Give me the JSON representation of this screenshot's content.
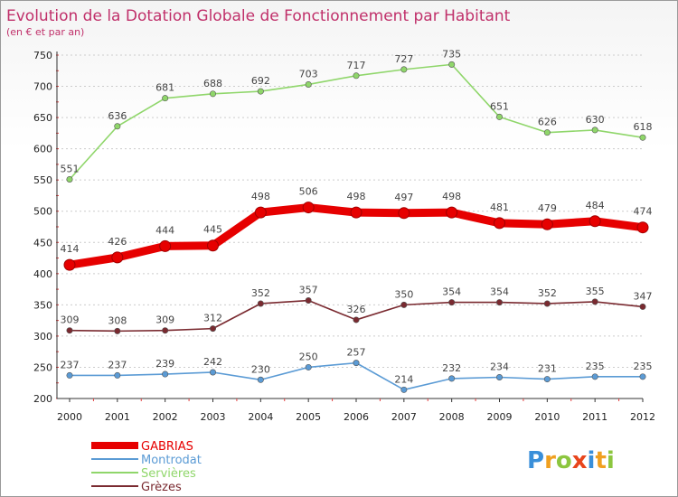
{
  "chart_data": {
    "type": "line",
    "title": "Evolution de la Dotation Globale de Fonctionnement par Habitant",
    "subtitle": "(en € et par an)",
    "xlabel": "",
    "ylabel": "",
    "x": [
      "2000",
      "2001",
      "2002",
      "2003",
      "2004",
      "2005",
      "2006",
      "2007",
      "2008",
      "2009",
      "2010",
      "2011",
      "2012"
    ],
    "yticks": [
      200,
      250,
      300,
      350,
      400,
      450,
      500,
      550,
      600,
      650,
      700,
      750
    ],
    "ylim": [
      200,
      750
    ],
    "grid": "horizontal dashed",
    "legend_position": "bottom-left",
    "series": [
      {
        "name": "GABRIAS",
        "color": "#e60000",
        "values": [
          414,
          426,
          444,
          445,
          498,
          506,
          498,
          497,
          498,
          481,
          479,
          484,
          474
        ]
      },
      {
        "name": "Montrodat",
        "color": "#5b9bd5",
        "values": [
          237,
          237,
          239,
          242,
          230,
          250,
          257,
          214,
          232,
          234,
          231,
          235,
          235
        ]
      },
      {
        "name": "Servières",
        "color": "#8fd66a",
        "values": [
          551,
          636,
          681,
          688,
          692,
          703,
          717,
          727,
          735,
          651,
          626,
          630,
          618
        ]
      },
      {
        "name": "Grèzes",
        "color": "#7a2a30",
        "values": [
          309,
          308,
          309,
          312,
          352,
          357,
          326,
          350,
          354,
          354,
          352,
          355,
          347
        ]
      }
    ]
  },
  "brand": {
    "text": "Proxiti"
  }
}
